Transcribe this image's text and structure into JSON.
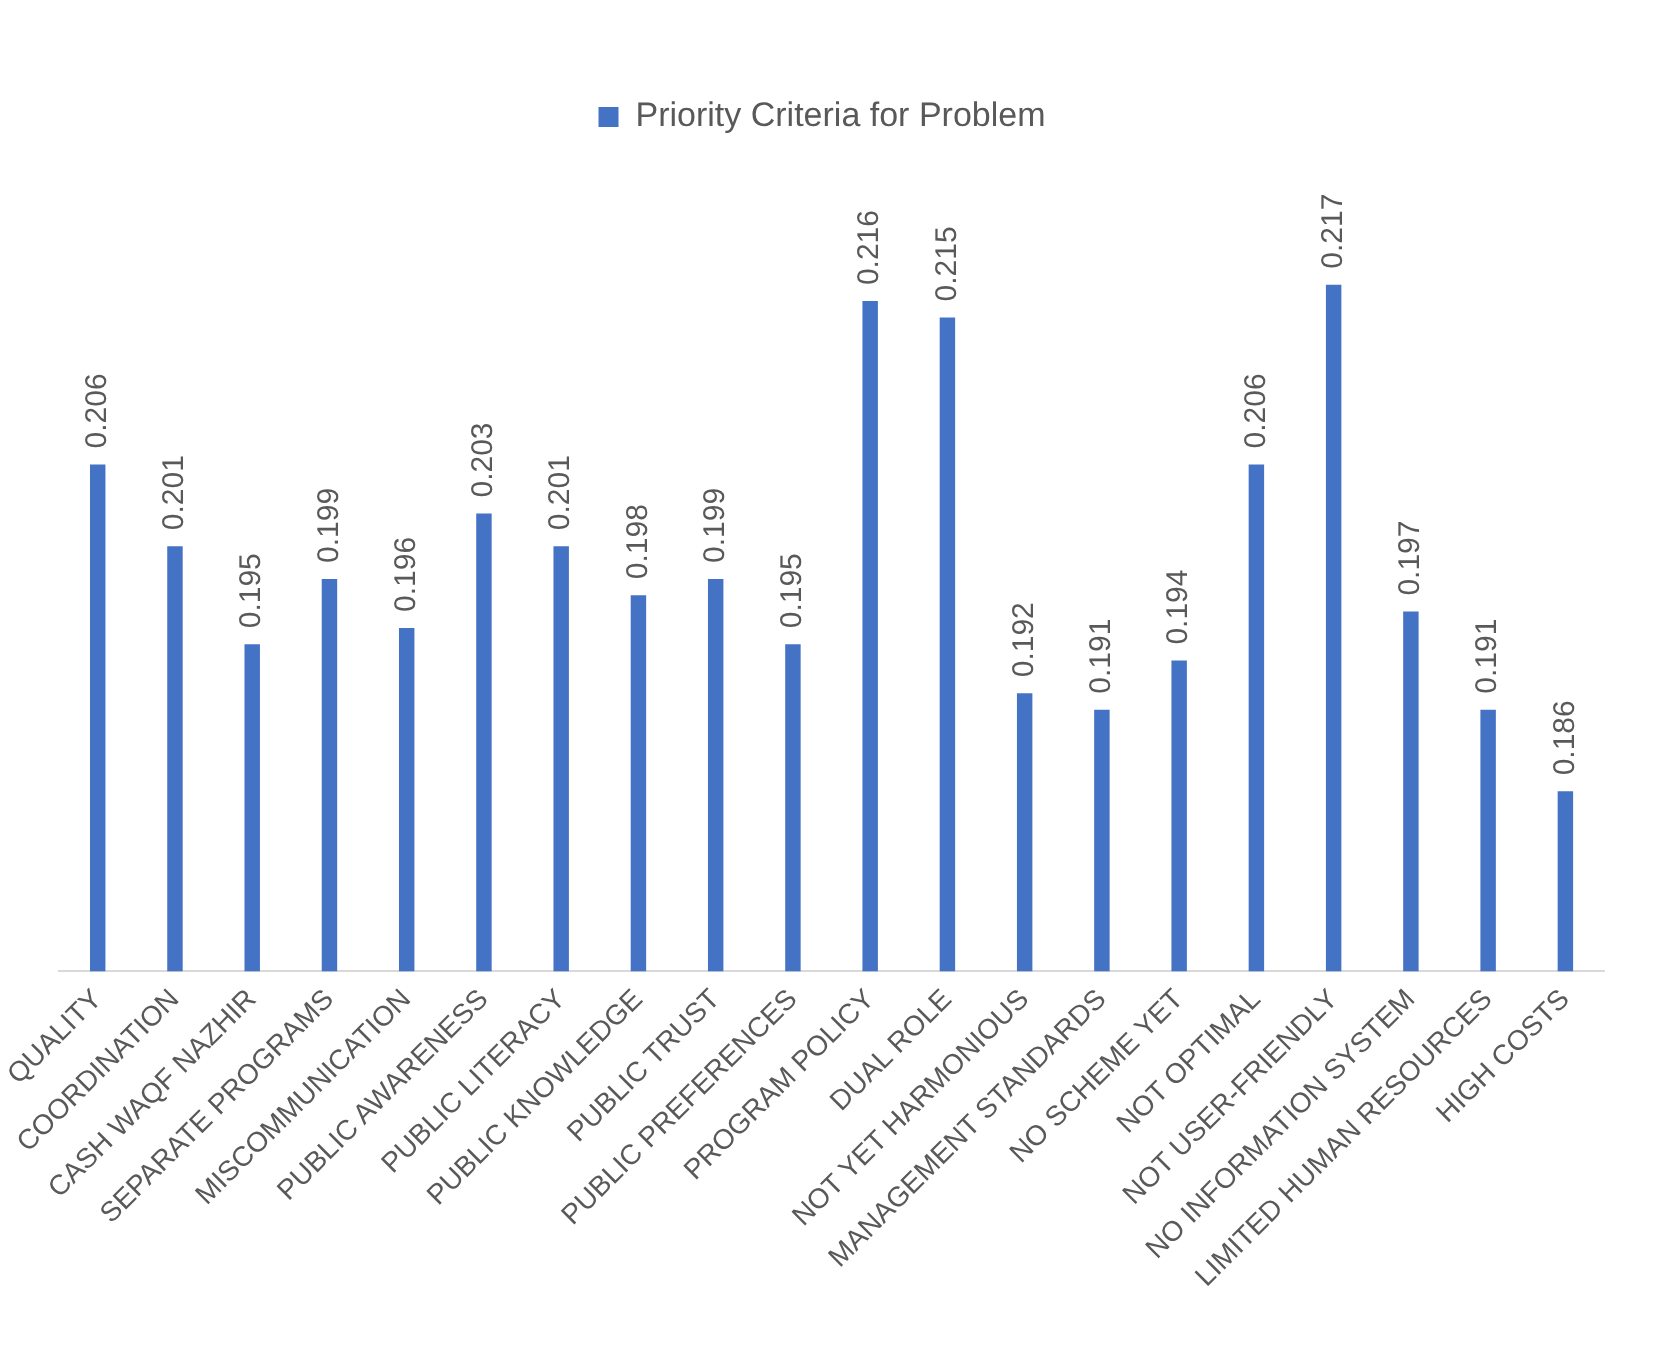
{
  "chart_data": {
    "type": "bar",
    "categories": [
      "QUALITY",
      "COORDINATION",
      "CASH WAQF NAZHIR",
      "SEPARATE PROGRAMS",
      "MISCOMMUNICATION",
      "PUBLIC AWARENESS",
      "PUBLIC LITERACY",
      "PUBLIC KNOWLEDGE",
      "PUBLIC TRUST",
      "PUBLIC PREFERENCES",
      "PROGRAM POLICY",
      "DUAL ROLE",
      "NOT YET HARMONIOUS",
      "MANAGEMENT STANDARDS",
      "NO SCHEME YET",
      "NOT OPTIMAL",
      "NOT USER-FRIENDLY",
      "NO INFORMATION SYSTEM",
      "LIMITED HUMAN RESOURCES",
      "HIGH COSTS"
    ],
    "series": [
      {
        "name": "Priority Criteria for Problem",
        "color": "#4472c4",
        "values": [
          0.206,
          0.201,
          0.195,
          0.199,
          0.196,
          0.203,
          0.201,
          0.198,
          0.199,
          0.195,
          0.216,
          0.215,
          0.192,
          0.191,
          0.194,
          0.206,
          0.217,
          0.197,
          0.191,
          0.186
        ]
      }
    ],
    "tick_labels": "x",
    "grid": false,
    "legend": "top",
    "data_labels": true
  }
}
